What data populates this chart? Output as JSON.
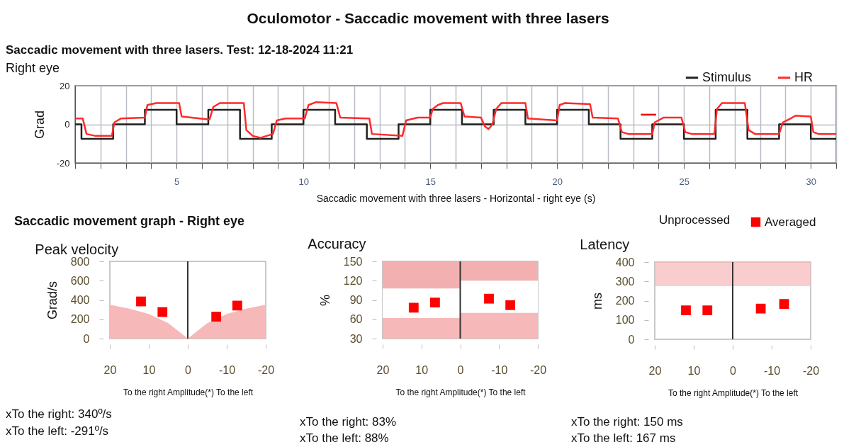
{
  "chart_data": [
    {
      "type": "line",
      "title": "Oculomotor - Saccadic movement with three lasers",
      "subtitle": "Saccadic movement with three lasers. Test: 12-18-2024 11:21",
      "annotations": [
        "Right eye"
      ],
      "xlabel": "Saccadic movement with three lasers - Horizontal - right eye (s)",
      "ylabel": "Grad",
      "xlim": [
        1,
        31
      ],
      "ylim": [
        -20,
        20
      ],
      "yticks": [
        -20,
        0,
        20
      ],
      "xticks": [
        {
          "value": 1,
          "label": null
        },
        {
          "value": 2,
          "label": null
        },
        {
          "value": 3,
          "label": null
        },
        {
          "value": 4,
          "label": null
        },
        5,
        {
          "value": 6,
          "label": null
        },
        {
          "value": 7,
          "label": null
        },
        {
          "value": 8,
          "label": null
        },
        {
          "value": 9,
          "label": null
        },
        10,
        {
          "value": 11,
          "label": null
        },
        {
          "value": 12,
          "label": null
        },
        {
          "value": 13,
          "label": null
        },
        {
          "value": 14,
          "label": null
        },
        15,
        {
          "value": 16,
          "label": null
        },
        {
          "value": 17,
          "label": null
        },
        {
          "value": 18,
          "label": null
        },
        {
          "value": 19,
          "label": null
        },
        20,
        {
          "value": 21,
          "label": null
        },
        {
          "value": 22,
          "label": null
        },
        {
          "value": 23,
          "label": null
        },
        {
          "value": 24,
          "label": null
        },
        25,
        {
          "value": 26,
          "label": null
        },
        {
          "value": 27,
          "label": null
        },
        {
          "value": 28,
          "label": null
        },
        {
          "value": 29,
          "label": null
        },
        30,
        {
          "value": 31,
          "label": null
        }
      ],
      "grid": true,
      "legend": "top right",
      "series": [
        {
          "name": "Stimulus",
          "type": "step",
          "color": "#222222",
          "x": [
            1,
            1.25,
            2.5,
            3.75,
            5,
            6.25,
            7.5,
            8.75,
            10,
            11.25,
            12.5,
            13.75,
            15,
            16.25,
            17.5,
            18.75,
            20,
            21.25,
            22.5,
            23.75,
            25,
            26.25,
            27.5,
            28.75,
            30,
            31
          ],
          "values": [
            0,
            -7.5,
            0,
            7.5,
            0,
            7.5,
            -7.5,
            0,
            7.5,
            0,
            -7.5,
            0,
            7.5,
            0,
            7.5,
            0,
            7.5,
            0,
            -7.5,
            0,
            -7.5,
            7.5,
            -7.5,
            0,
            -7.5,
            -7.5
          ]
        },
        {
          "name": "HR",
          "color": "#ff2a2a",
          "x": [
            1,
            1.3,
            1.45,
            1.8,
            2.45,
            2.55,
            2.8,
            3.75,
            3.85,
            4.2,
            5.1,
            5.2,
            6.3,
            6.45,
            6.7,
            7.65,
            7.75,
            8,
            8.3,
            8.8,
            8.95,
            9.3,
            10.05,
            10.2,
            10.5,
            11.3,
            11.45,
            12.6,
            12.7,
            13.9,
            14.05,
            14.5,
            15,
            15.1,
            15.3,
            15.5,
            16.2,
            16.35,
            17,
            17.15,
            17.3,
            17.45,
            17.6,
            17.8,
            18.75,
            18.85,
            20,
            20.1,
            20.3,
            21.3,
            21.4,
            22.4,
            22.55,
            22.8,
            23.75,
            23.85,
            24.2,
            24.9,
            25.05,
            25.3,
            26.2,
            26.3,
            26.5,
            27.4,
            27.55,
            27.8,
            28.75,
            28.9,
            29.2,
            29.4,
            30,
            30.1,
            30.3,
            31
          ],
          "values": [
            3,
            3,
            -5,
            -6,
            -6,
            1,
            3,
            3.5,
            10,
            11,
            11,
            4,
            2.5,
            9,
            11,
            11,
            -3,
            -6,
            -7,
            -5,
            2,
            3,
            3,
            10,
            11.5,
            11,
            3.5,
            3,
            -5,
            -6,
            2,
            3.5,
            3.5,
            8,
            10,
            11,
            11,
            4,
            3.5,
            -1,
            -2.5,
            0,
            8,
            11,
            11,
            3,
            2,
            10,
            11,
            10.5,
            3.5,
            3,
            -4,
            -5,
            -5,
            1,
            3.5,
            3.5,
            -4,
            -5,
            -5,
            8,
            11,
            11,
            -3,
            -5,
            -5,
            1,
            3,
            4.5,
            4,
            -4,
            -5,
            -5
          ]
        },
        {
          "color": "#ee0000",
          "x": [
            23.3,
            23.9
          ],
          "values": [
            5,
            5
          ]
        }
      ]
    },
    {
      "type": "scatter",
      "title": "Peak velocity",
      "ylabel": "Grad/s",
      "xlabel": "To the right  Amplitude(*) To the left",
      "xlim": [
        20,
        -20
      ],
      "xticks": [
        20,
        10,
        0,
        -10,
        -20
      ],
      "ylim": [
        0,
        800
      ],
      "yticks": [
        0,
        200,
        400,
        600,
        800
      ],
      "legend": "top right",
      "annotations": [
        "Saccadic movement graph - Right eye",
        "Unprocessed",
        "xTo the right: 340º/s",
        "xTo the left: -291º/s"
      ],
      "ref_lines": [
        {
          "axis": "x",
          "value": 0,
          "color": "#333333"
        }
      ],
      "series": [
        {
          "type": "area",
          "color": "#f6b8b8",
          "x": [
            20,
            15,
            10,
            5,
            0,
            -5,
            -10,
            -15,
            -20
          ],
          "values": [
            350,
            310,
            255,
            160,
            0,
            160,
            255,
            310,
            350
          ]
        },
        {
          "name": "Averaged",
          "color": "#ff0000",
          "marker": "square",
          "x": [
            12,
            6.5,
            -7.3,
            -12.7
          ],
          "values": [
            385,
            275,
            227,
            342
          ]
        }
      ]
    },
    {
      "type": "scatter",
      "title": "Accuracy",
      "ylabel": "%",
      "xlabel": "To the right  Amplitude(*) To the left",
      "xlim": [
        20,
        -20
      ],
      "xticks": [
        20,
        10,
        0,
        -10,
        -20
      ],
      "ylim": [
        30,
        150
      ],
      "yticks": [
        30,
        60,
        90,
        120,
        150
      ],
      "annotations": [
        "xTo the right: 83%",
        "xTo the left: 88%"
      ],
      "ref_lines": [
        {
          "axis": "x",
          "value": 0,
          "color": "#333333"
        }
      ],
      "series": [
        {
          "type": "area",
          "color": "#f3b0b0",
          "x": [
            20,
            0,
            0,
            -20
          ],
          "values": [
            150,
            150,
            150,
            150
          ]
        },
        {
          "type": "area",
          "color": "#ffffff",
          "x": [
            20,
            0,
            0,
            -20
          ],
          "values": [
            108,
            108,
            120,
            120
          ]
        },
        {
          "type": "area",
          "color": "#f6b8b8",
          "x": [
            20,
            0,
            0,
            -20
          ],
          "values": [
            62,
            62,
            70,
            70
          ]
        },
        {
          "color": "#ff0000",
          "marker": "square",
          "x": [
            12,
            6.5,
            -7.4,
            -12.9
          ],
          "values": [
            78,
            86,
            92,
            82
          ]
        }
      ]
    },
    {
      "type": "scatter",
      "title": "Latency",
      "ylabel": "ms",
      "xlabel": "To the right  Amplitude(*) To the left",
      "xlim": [
        20,
        -20
      ],
      "xticks": [
        20,
        10,
        0,
        -10,
        -20
      ],
      "ylim": [
        0,
        400
      ],
      "yticks": [
        0,
        100,
        200,
        300,
        400
      ],
      "bands": [
        {
          "axis": "y",
          "from": 275,
          "to": 400,
          "color": "#f6b8b8"
        }
      ],
      "annotations": [
        "xTo the right: 150 ms",
        "xTo the left: 167 ms"
      ],
      "ref_lines": [
        {
          "axis": "x",
          "value": 0,
          "color": "#333333"
        }
      ],
      "series": [
        {
          "color": "#ff0000",
          "marker": "square",
          "x": [
            12,
            6.5,
            -7.2,
            -13.2
          ],
          "values": [
            150,
            150,
            159,
            183
          ]
        }
      ]
    }
  ]
}
